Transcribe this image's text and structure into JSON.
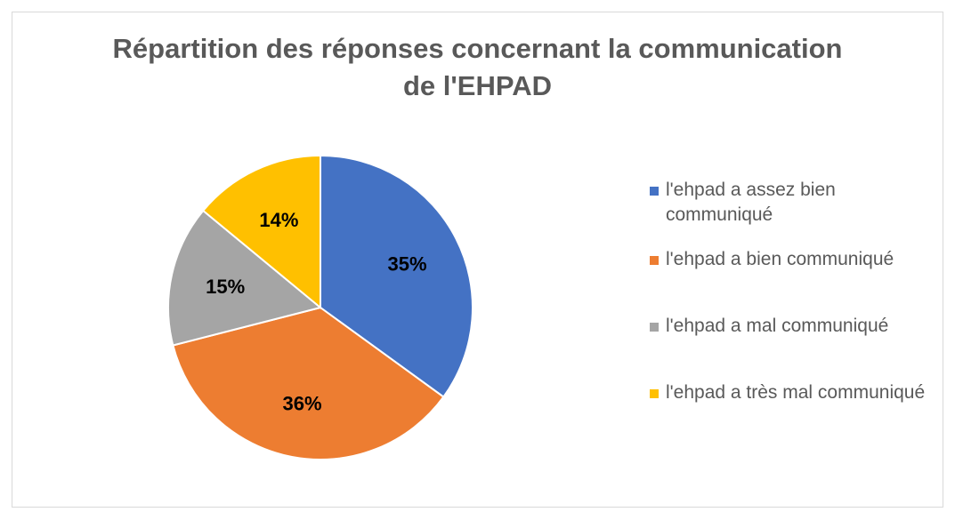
{
  "chart_data": {
    "type": "pie",
    "title_lines": [
      "Répartition des réponses concernant la communication",
      "de l'EHPAD"
    ],
    "categories": [
      "l'ehpad a assez bien communiqué",
      "l'ehpad a bien communiqué",
      "l'ehpad a mal communiqué",
      "l'ehpad a très mal communiqué"
    ],
    "values": [
      35,
      36,
      15,
      14
    ],
    "data_labels": [
      "35%",
      "36%",
      "15%",
      "14%"
    ],
    "colors": [
      "#4472c4",
      "#ed7d31",
      "#a5a5a5",
      "#ffc000"
    ],
    "legend_position": "right"
  }
}
